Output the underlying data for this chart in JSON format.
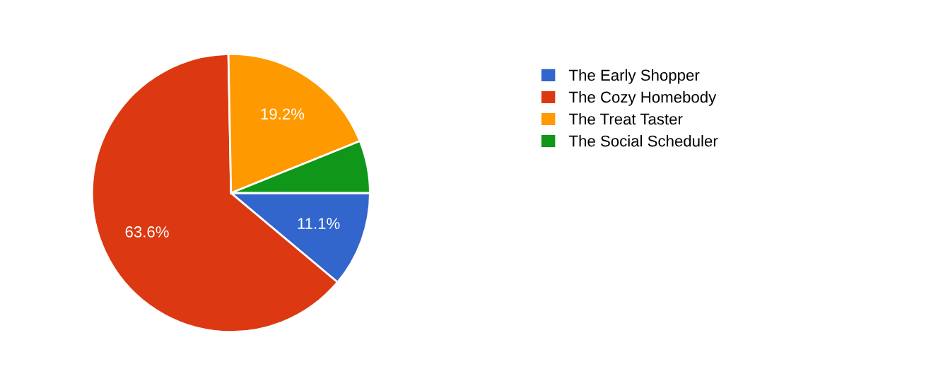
{
  "chart_data": {
    "type": "pie",
    "categories": [
      "The Early Shopper",
      "The Cozy Homebody",
      "The Treat Taster",
      "The Social Scheduler"
    ],
    "values": [
      11.1,
      63.6,
      19.2,
      6.1
    ],
    "colors": [
      "#3366cc",
      "#dc3912",
      "#ff9900",
      "#109618"
    ],
    "value_labels": [
      "11.1%",
      "63.6%",
      "19.2%",
      null
    ],
    "legend": "right"
  }
}
